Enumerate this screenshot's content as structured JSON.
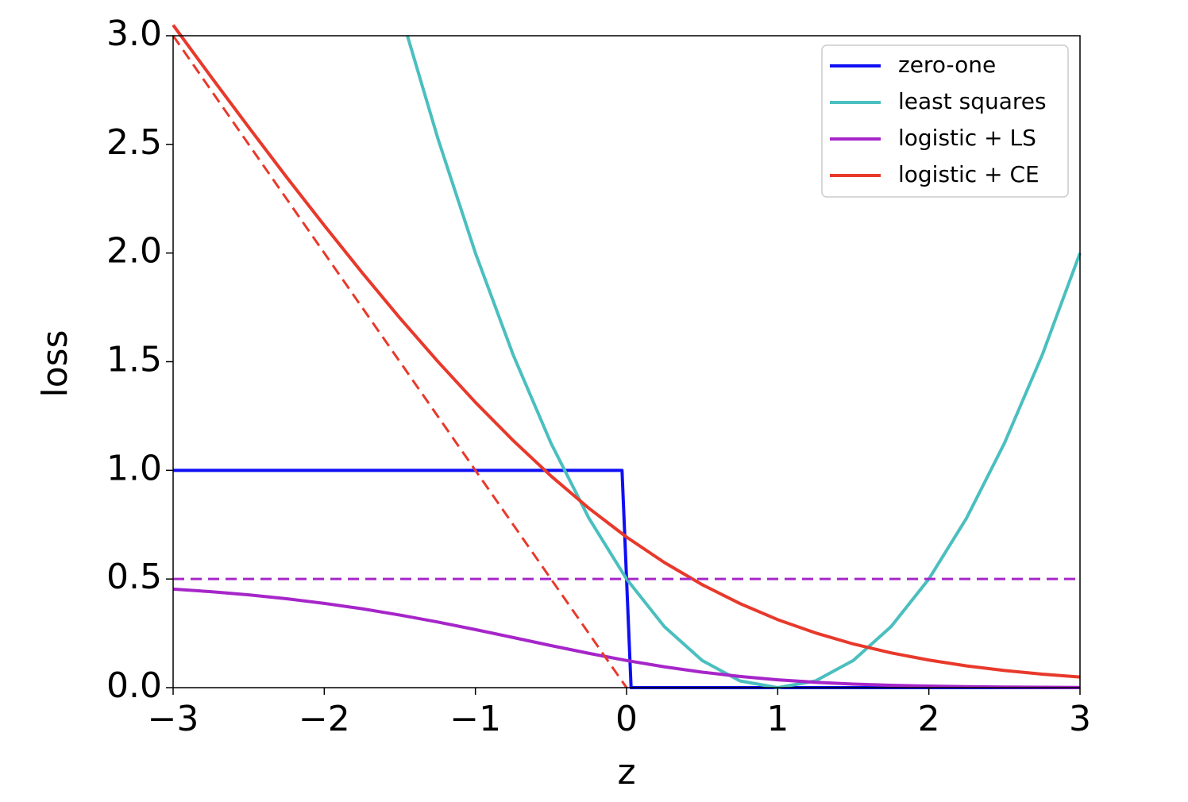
{
  "chart_data": {
    "type": "line",
    "x_label": "z",
    "y_label": "loss",
    "xlim": [
      -3,
      3
    ],
    "ylim": [
      0,
      3
    ],
    "xticks": [
      {
        "value": -3,
        "label": "−3"
      },
      {
        "value": -2,
        "label": "−2"
      },
      {
        "value": -1,
        "label": "−1"
      },
      0,
      1,
      2,
      3
    ],
    "yticks": [
      {
        "value": 0,
        "label": "0.0"
      },
      0.5,
      {
        "value": 1,
        "label": "1.0"
      },
      1.5,
      {
        "value": 2,
        "label": "2.0"
      },
      2.5,
      {
        "value": 3,
        "label": "3.0"
      }
    ],
    "grid": false,
    "legend": "upper right",
    "series": [
      {
        "name": "zero-one",
        "color": "#0f0ff5",
        "x": [
          -3,
          -0.03,
          0.03,
          3
        ],
        "values": [
          1,
          1,
          0,
          0
        ]
      },
      {
        "name": "least squares",
        "color": "#4bbfbf",
        "x": [
          -1.45,
          -1.25,
          -1,
          -0.75,
          -0.5,
          -0.25,
          0,
          0.25,
          0.5,
          0.75,
          1,
          1.25,
          1.5,
          1.75,
          2,
          2.25,
          2.5,
          2.75,
          3
        ],
        "values": [
          3.0,
          2.531,
          2.0,
          1.531,
          1.125,
          0.781,
          0.5,
          0.281,
          0.125,
          0.031,
          0,
          0.031,
          0.125,
          0.281,
          0.5,
          0.781,
          1.125,
          1.531,
          2.0
        ]
      },
      {
        "name": "logistic + LS",
        "color": "#a626c9",
        "x": [
          -3,
          -2.75,
          -2.5,
          -2.25,
          -2,
          -1.75,
          -1.5,
          -1.25,
          -1,
          -0.75,
          -0.5,
          -0.25,
          0,
          0.25,
          0.5,
          0.75,
          1,
          1.25,
          1.5,
          1.75,
          2,
          2.25,
          2.5,
          2.75,
          3
        ],
        "values": [
          0.4537,
          0.4417,
          0.427,
          0.4092,
          0.3879,
          0.363,
          0.3342,
          0.3021,
          0.2672,
          0.2307,
          0.1937,
          0.158,
          0.125,
          0.0958,
          0.0713,
          0.0515,
          0.0362,
          0.0248,
          0.0166,
          0.011,
          0.0071,
          0.0045,
          0.0029,
          0.0018,
          0.0011
        ]
      },
      {
        "name": "logistic + CE",
        "color": "#e8392b",
        "x": [
          -3,
          -2.75,
          -2.5,
          -2.25,
          -2,
          -1.75,
          -1.5,
          -1.25,
          -1,
          -0.75,
          -0.5,
          -0.25,
          0,
          0.25,
          0.5,
          0.75,
          1,
          1.25,
          1.5,
          1.75,
          2,
          2.25,
          2.5,
          2.75,
          3
        ],
        "values": [
          3.049,
          2.812,
          2.579,
          2.35,
          2.127,
          1.91,
          1.701,
          1.502,
          1.313,
          1.137,
          0.974,
          0.826,
          0.693,
          0.576,
          0.474,
          0.387,
          0.313,
          0.252,
          0.201,
          0.16,
          0.127,
          0.1,
          0.079,
          0.062,
          0.049
        ]
      },
      {
        "color": "#e8392b",
        "dash": true,
        "x": [
          -3,
          0
        ],
        "values": [
          3,
          0
        ]
      },
      {
        "color": "#a626c9",
        "dash": true,
        "x": [
          -3,
          3
        ],
        "values": [
          0.5,
          0.5
        ]
      }
    ]
  }
}
